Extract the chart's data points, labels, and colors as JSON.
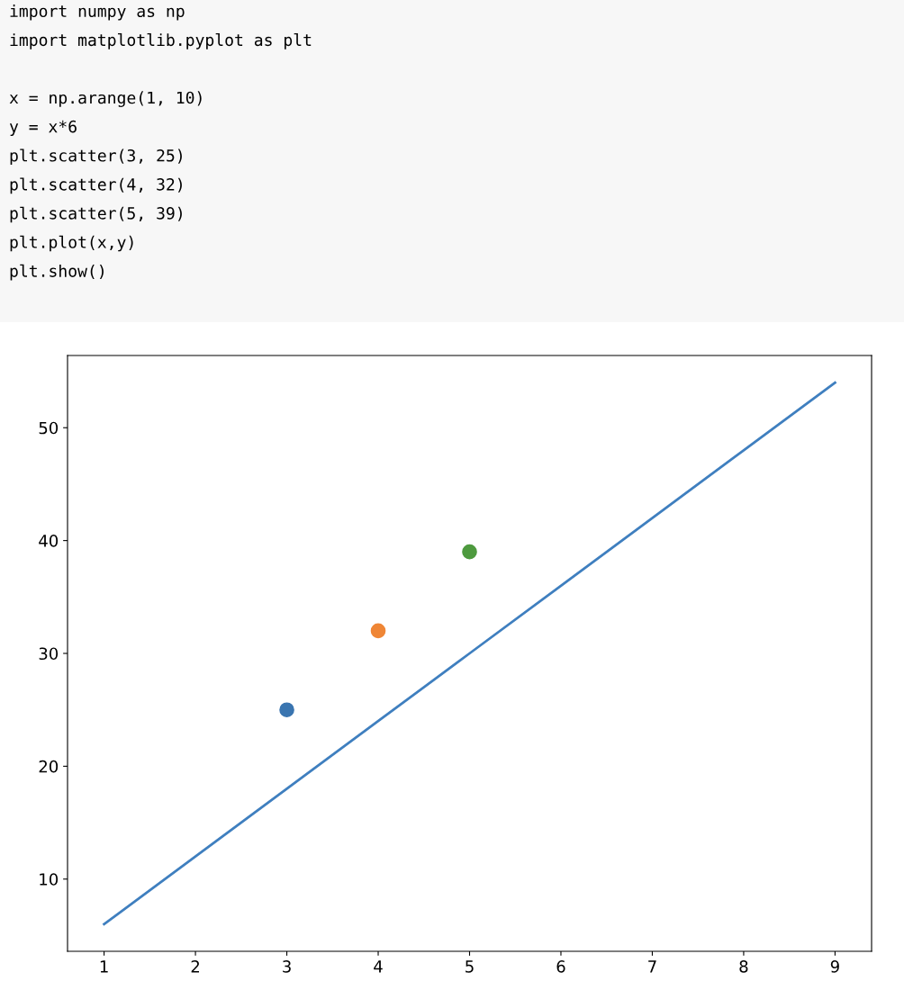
{
  "chart_data": {
    "type": "line",
    "annotations": [
      "import numpy as np\nimport matplotlib.pyplot as plt\n\nx = np.arange(1, 10)\ny = x*6\nplt.scatter(3, 25)\nplt.scatter(4, 32)\nplt.scatter(5, 39)\nplt.plot(x,y)\nplt.show()"
    ],
    "series": [
      {
        "color": "#3f7fbf",
        "x": [
          1,
          2,
          3,
          4,
          5,
          6,
          7,
          8,
          9
        ],
        "values": [
          6,
          12,
          18,
          24,
          30,
          36,
          42,
          48,
          54
        ]
      },
      {
        "type": "scatter",
        "marker": "circle",
        "color": "#3a75b0",
        "x": [
          3
        ],
        "values": [
          25
        ]
      },
      {
        "type": "scatter",
        "marker": "circle",
        "color": "#ef8636",
        "x": [
          4
        ],
        "values": [
          32
        ]
      },
      {
        "type": "scatter",
        "marker": "circle",
        "color": "#4e9a3f",
        "x": [
          5
        ],
        "values": [
          39
        ]
      }
    ],
    "line_style": "solid",
    "xlim": [
      0.6,
      9.4
    ],
    "xticks": [
      1,
      2,
      3,
      4,
      5,
      6,
      7,
      8,
      9
    ],
    "ylim": [
      3.6,
      56.4
    ],
    "yticks": [
      10,
      20,
      30,
      40,
      50
    ]
  }
}
